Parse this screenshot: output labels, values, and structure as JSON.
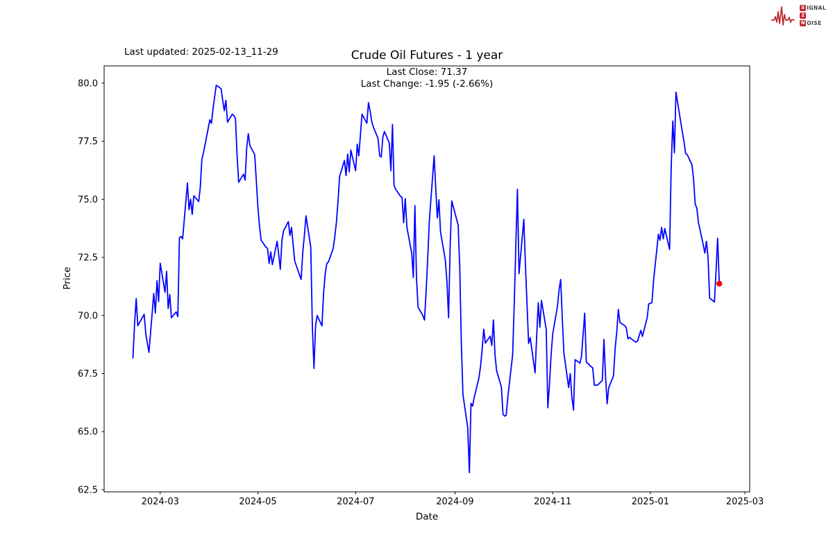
{
  "header": {
    "last_updated": "Last updated: 2025-02-13_11-29"
  },
  "logo": {
    "color": "#c1272d",
    "s": "S",
    "ignal": "IGNAL",
    "two": "2",
    "n": "N",
    "oise": "OISE"
  },
  "chart_data": {
    "type": "line",
    "title": "Crude Oil Futures - 1 year",
    "annotations": [
      "Last Close: 71.37",
      "Last Change: -1.95 (-2.66%)"
    ],
    "xlabel": "Date",
    "ylabel": "Price",
    "line_color": "#0000ff",
    "last_point_color": "#ff0000",
    "grid": false,
    "ylim": [
      62.41,
      80.74
    ],
    "xlim": [
      "2024-01-26",
      "2025-03-04"
    ],
    "yticks": [
      62.5,
      65.0,
      67.5,
      70.0,
      72.5,
      75.0,
      77.5,
      80.0
    ],
    "ytick_labels": [
      "62.5",
      "65.0",
      "67.5",
      "70.0",
      "72.5",
      "75.0",
      "77.5",
      "80.0"
    ],
    "xticks": [
      {
        "date": "2024-03-01",
        "label": "2024-03"
      },
      {
        "date": "2024-05-01",
        "label": "2024-05"
      },
      {
        "date": "2024-07-01",
        "label": "2024-07"
      },
      {
        "date": "2024-09-01",
        "label": "2024-09"
      },
      {
        "date": "2024-11-01",
        "label": "2024-11"
      },
      {
        "date": "2025-01-01",
        "label": "2025-01"
      },
      {
        "date": "2025-03-01",
        "label": "2025-03"
      }
    ],
    "last_point": {
      "date": "2025-02-13",
      "value": 71.37
    },
    "series": [
      {
        "dates": [
          "2024-02-13",
          "2024-02-14",
          "2024-02-15",
          "2024-02-16",
          "2024-02-20",
          "2024-02-21",
          "2024-02-23",
          "2024-02-26",
          "2024-02-27",
          "2024-02-28",
          "2024-02-29",
          "2024-03-01",
          "2024-03-04",
          "2024-03-05",
          "2024-03-06",
          "2024-03-07",
          "2024-03-08",
          "2024-03-11",
          "2024-03-12",
          "2024-03-13",
          "2024-03-14",
          "2024-03-15",
          "2024-03-18",
          "2024-03-19",
          "2024-03-20",
          "2024-03-21",
          "2024-03-22",
          "2024-03-25",
          "2024-03-26",
          "2024-03-27",
          "2024-03-28",
          "2024-04-01",
          "2024-04-02",
          "2024-04-03",
          "2024-04-04",
          "2024-04-05",
          "2024-04-08",
          "2024-04-09",
          "2024-04-10",
          "2024-04-11",
          "2024-04-12",
          "2024-04-15",
          "2024-04-16",
          "2024-04-17",
          "2024-04-18",
          "2024-04-19",
          "2024-04-22",
          "2024-04-23",
          "2024-04-24",
          "2024-04-25",
          "2024-04-26",
          "2024-04-29",
          "2024-04-30",
          "2024-05-01",
          "2024-05-02",
          "2024-05-03",
          "2024-05-06",
          "2024-05-07",
          "2024-05-08",
          "2024-05-09",
          "2024-05-10",
          "2024-05-13",
          "2024-05-14",
          "2024-05-15",
          "2024-05-16",
          "2024-05-17",
          "2024-05-20",
          "2024-05-21",
          "2024-05-22",
          "2024-05-23",
          "2024-05-24",
          "2024-05-28",
          "2024-05-29",
          "2024-05-30",
          "2024-05-31",
          "2024-06-03",
          "2024-06-04",
          "2024-06-05",
          "2024-06-06",
          "2024-06-07",
          "2024-06-10",
          "2024-06-11",
          "2024-06-12",
          "2024-06-13",
          "2024-06-14",
          "2024-06-17",
          "2024-06-18",
          "2024-06-19",
          "2024-06-20",
          "2024-06-21",
          "2024-06-24",
          "2024-06-25",
          "2024-06-26",
          "2024-06-27",
          "2024-06-28",
          "2024-07-01",
          "2024-07-02",
          "2024-07-03",
          "2024-07-05",
          "2024-07-08",
          "2024-07-09",
          "2024-07-10",
          "2024-07-11",
          "2024-07-12",
          "2024-07-15",
          "2024-07-16",
          "2024-07-17",
          "2024-07-18",
          "2024-07-19",
          "2024-07-22",
          "2024-07-23",
          "2024-07-24",
          "2024-07-25",
          "2024-07-26",
          "2024-07-29",
          "2024-07-30",
          "2024-07-31",
          "2024-08-01",
          "2024-08-02",
          "2024-08-05",
          "2024-08-06",
          "2024-08-07",
          "2024-08-08",
          "2024-08-09",
          "2024-08-12",
          "2024-08-13",
          "2024-08-14",
          "2024-08-15",
          "2024-08-16",
          "2024-08-19",
          "2024-08-20",
          "2024-08-21",
          "2024-08-22",
          "2024-08-23",
          "2024-08-26",
          "2024-08-27",
          "2024-08-28",
          "2024-08-29",
          "2024-08-30",
          "2024-09-03",
          "2024-09-04",
          "2024-09-05",
          "2024-09-06",
          "2024-09-09",
          "2024-09-10",
          "2024-09-11",
          "2024-09-12",
          "2024-09-13",
          "2024-09-16",
          "2024-09-17",
          "2024-09-18",
          "2024-09-19",
          "2024-09-20",
          "2024-09-23",
          "2024-09-24",
          "2024-09-25",
          "2024-09-26",
          "2024-09-27",
          "2024-09-30",
          "2024-10-01",
          "2024-10-02",
          "2024-10-03",
          "2024-10-04",
          "2024-10-07",
          "2024-10-08",
          "2024-10-09",
          "2024-10-10",
          "2024-10-11",
          "2024-10-14",
          "2024-10-15",
          "2024-10-16",
          "2024-10-17",
          "2024-10-18",
          "2024-10-21",
          "2024-10-22",
          "2024-10-23",
          "2024-10-24",
          "2024-10-25",
          "2024-10-28",
          "2024-10-29",
          "2024-10-30",
          "2024-10-31",
          "2024-11-01",
          "2024-11-04",
          "2024-11-05",
          "2024-11-06",
          "2024-11-07",
          "2024-11-08",
          "2024-11-11",
          "2024-11-12",
          "2024-11-13",
          "2024-11-14",
          "2024-11-15",
          "2024-11-18",
          "2024-11-19",
          "2024-11-20",
          "2024-11-21",
          "2024-11-22",
          "2024-11-25",
          "2024-11-26",
          "2024-11-27",
          "2024-11-29",
          "2024-12-02",
          "2024-12-03",
          "2024-12-04",
          "2024-12-05",
          "2024-12-06",
          "2024-12-09",
          "2024-12-10",
          "2024-12-11",
          "2024-12-12",
          "2024-12-13",
          "2024-12-16",
          "2024-12-17",
          "2024-12-18",
          "2024-12-19",
          "2024-12-20",
          "2024-12-23",
          "2024-12-24",
          "2024-12-26",
          "2024-12-27",
          "2024-12-30",
          "2024-12-31",
          "2025-01-02",
          "2025-01-03",
          "2025-01-06",
          "2025-01-07",
          "2025-01-08",
          "2025-01-09",
          "2025-01-10",
          "2025-01-13",
          "2025-01-14",
          "2025-01-15",
          "2025-01-16",
          "2025-01-17",
          "2025-01-21",
          "2025-01-22",
          "2025-01-23",
          "2025-01-24",
          "2025-01-27",
          "2025-01-28",
          "2025-01-29",
          "2025-01-30",
          "2025-01-31",
          "2025-02-03",
          "2025-02-04",
          "2025-02-05",
          "2025-02-06",
          "2025-02-07",
          "2025-02-10",
          "2025-02-11",
          "2025-02-12",
          "2025-02-13"
        ],
        "values": [
          68.17,
          69.6,
          70.73,
          69.56,
          70.05,
          69.21,
          68.41,
          70.95,
          70.1,
          71.5,
          70.6,
          72.25,
          71.0,
          71.9,
          70.3,
          70.9,
          69.9,
          70.15,
          69.95,
          73.35,
          73.4,
          73.3,
          75.7,
          74.55,
          75.0,
          74.35,
          75.15,
          74.9,
          75.5,
          76.72,
          77.0,
          78.42,
          78.27,
          78.9,
          79.4,
          79.91,
          79.76,
          79.26,
          78.81,
          79.26,
          78.32,
          78.66,
          78.61,
          78.47,
          76.92,
          75.73,
          76.08,
          75.83,
          77.22,
          77.82,
          77.32,
          76.92,
          75.83,
          74.68,
          73.84,
          73.24,
          72.94,
          72.89,
          72.24,
          72.74,
          72.19,
          73.19,
          72.64,
          71.99,
          73.24,
          73.64,
          74.04,
          73.44,
          73.79,
          73.04,
          72.34,
          71.55,
          72.74,
          73.44,
          74.29,
          72.94,
          69.5,
          67.72,
          69.56,
          70.0,
          69.55,
          71.0,
          71.8,
          72.24,
          72.3,
          72.89,
          73.39,
          74.0,
          74.88,
          75.98,
          76.67,
          76.02,
          76.95,
          76.18,
          77.12,
          76.23,
          77.37,
          76.87,
          78.66,
          78.27,
          79.16,
          78.81,
          78.36,
          78.12,
          77.62,
          76.87,
          76.82,
          77.67,
          77.92,
          77.42,
          76.23,
          78.22,
          75.58,
          75.43,
          75.13,
          75.08,
          73.99,
          75.03,
          73.79,
          72.69,
          71.64,
          74.73,
          71.59,
          70.35,
          70.0,
          69.8,
          71.0,
          72.49,
          74.09,
          76.87,
          75.48,
          74.2,
          74.98,
          73.59,
          72.39,
          71.49,
          69.9,
          73.0,
          74.93,
          73.89,
          72.09,
          68.8,
          66.6,
          65.18,
          63.24,
          66.22,
          66.1,
          66.47,
          67.32,
          67.82,
          68.56,
          69.41,
          68.81,
          69.11,
          68.71,
          69.81,
          68.31,
          67.62,
          66.92,
          65.75,
          65.67,
          65.7,
          66.47,
          68.31,
          70.5,
          73.0,
          75.43,
          71.8,
          74.14,
          72.2,
          70.5,
          68.8,
          69.05,
          67.53,
          69.1,
          70.55,
          69.5,
          70.65,
          69.4,
          66.03,
          67.0,
          68.26,
          69.2,
          70.4,
          71.1,
          71.55,
          69.9,
          68.4,
          66.9,
          67.5,
          66.5,
          65.93,
          68.1,
          67.95,
          68.24,
          69.2,
          70.1,
          68.0,
          67.8,
          67.75,
          67.0,
          67.0,
          67.2,
          68.97,
          67.4,
          66.2,
          66.9,
          67.4,
          68.6,
          69.3,
          70.26,
          69.7,
          69.56,
          69.46,
          69.0,
          69.06,
          69.0,
          68.85,
          68.9,
          69.36,
          69.1,
          69.9,
          70.5,
          70.55,
          71.5,
          73.5,
          73.24,
          73.79,
          73.3,
          73.74,
          72.84,
          76.38,
          78.37,
          77.0,
          79.61,
          77.87,
          77.47,
          76.97,
          76.92,
          76.48,
          75.83,
          74.78,
          74.63,
          73.99,
          73.04,
          72.69,
          73.19,
          72.49,
          70.75,
          70.58,
          71.9,
          73.32,
          71.37
        ]
      }
    ]
  }
}
